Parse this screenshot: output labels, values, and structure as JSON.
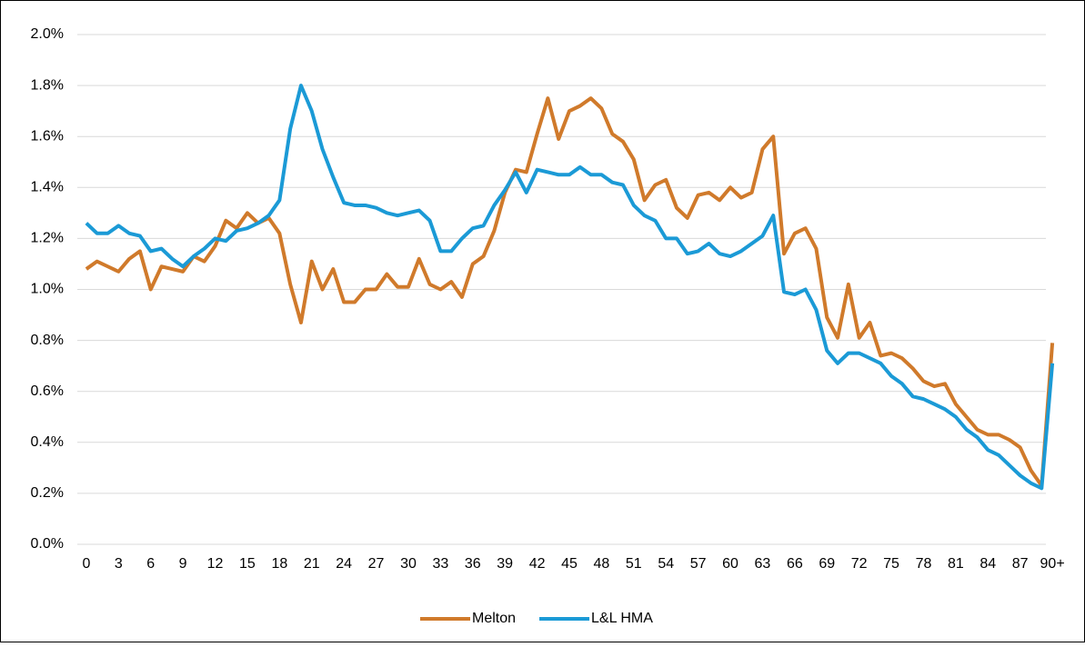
{
  "chart_data": {
    "type": "line",
    "categories": [
      "0",
      null,
      null,
      "3",
      null,
      null,
      "6",
      null,
      null,
      "9",
      null,
      null,
      "12",
      null,
      null,
      "15",
      null,
      null,
      "18",
      null,
      null,
      "21",
      null,
      null,
      "24",
      null,
      null,
      "27",
      null,
      null,
      "30",
      null,
      null,
      "33",
      null,
      null,
      "36",
      null,
      null,
      "39",
      null,
      null,
      "42",
      null,
      null,
      "45",
      null,
      null,
      "48",
      null,
      null,
      "51",
      null,
      null,
      "54",
      null,
      null,
      "57",
      null,
      null,
      "60",
      null,
      null,
      "63",
      null,
      null,
      "66",
      null,
      null,
      "69",
      null,
      null,
      "72",
      null,
      null,
      "75",
      null,
      null,
      "78",
      null,
      null,
      "81",
      null,
      null,
      "84",
      null,
      null,
      "87",
      null,
      null,
      "90+"
    ],
    "series": [
      {
        "name": "Melton",
        "color": "#d07a2b",
        "values": [
          1.08,
          1.11,
          1.09,
          1.07,
          1.12,
          1.15,
          1.0,
          1.09,
          1.08,
          1.07,
          1.13,
          1.11,
          1.17,
          1.27,
          1.24,
          1.3,
          1.26,
          1.28,
          1.22,
          1.02,
          0.87,
          1.11,
          1.0,
          1.08,
          0.95,
          0.95,
          1.0,
          1.0,
          1.06,
          1.01,
          1.01,
          1.12,
          1.02,
          1.0,
          1.03,
          0.97,
          1.1,
          1.13,
          1.23,
          1.38,
          1.47,
          1.46,
          1.61,
          1.75,
          1.59,
          1.7,
          1.72,
          1.75,
          1.71,
          1.61,
          1.58,
          1.51,
          1.35,
          1.41,
          1.43,
          1.32,
          1.28,
          1.37,
          1.38,
          1.35,
          1.4,
          1.36,
          1.38,
          1.55,
          1.6,
          1.14,
          1.22,
          1.24,
          1.16,
          0.89,
          0.81,
          1.02,
          0.81,
          0.87,
          0.74,
          0.75,
          0.73,
          0.69,
          0.64,
          0.62,
          0.63,
          0.55,
          0.5,
          0.45,
          0.43,
          0.43,
          0.41,
          0.38,
          0.29,
          0.23,
          0.79
        ]
      },
      {
        "name": "L&L HMA",
        "color": "#1b9ad6",
        "values": [
          1.26,
          1.22,
          1.22,
          1.25,
          1.22,
          1.21,
          1.15,
          1.16,
          1.12,
          1.09,
          1.13,
          1.16,
          1.2,
          1.19,
          1.23,
          1.24,
          1.26,
          1.29,
          1.35,
          1.63,
          1.8,
          1.7,
          1.55,
          1.44,
          1.34,
          1.33,
          1.33,
          1.32,
          1.3,
          1.29,
          1.3,
          1.31,
          1.27,
          1.15,
          1.15,
          1.2,
          1.24,
          1.25,
          1.33,
          1.39,
          1.46,
          1.38,
          1.47,
          1.46,
          1.45,
          1.45,
          1.48,
          1.45,
          1.45,
          1.42,
          1.41,
          1.33,
          1.29,
          1.27,
          1.2,
          1.2,
          1.14,
          1.15,
          1.18,
          1.14,
          1.13,
          1.15,
          1.18,
          1.21,
          1.29,
          0.99,
          0.98,
          1.0,
          0.92,
          0.76,
          0.71,
          0.75,
          0.75,
          0.73,
          0.71,
          0.66,
          0.63,
          0.58,
          0.57,
          0.55,
          0.53,
          0.5,
          0.45,
          0.42,
          0.37,
          0.35,
          0.31,
          0.27,
          0.24,
          0.22,
          0.71
        ]
      }
    ],
    "ylim": [
      0,
      2
    ],
    "yticks": [
      {
        "value": 0,
        "label": "0.0%"
      },
      {
        "value": 0.2,
        "label": "0.2%"
      },
      {
        "value": 0.4,
        "label": "0.4%"
      },
      {
        "value": 0.6,
        "label": "0.6%"
      },
      {
        "value": 0.8,
        "label": "0.8%"
      },
      {
        "value": 1.0,
        "label": "1.0%"
      },
      {
        "value": 1.2,
        "label": "1.2%"
      },
      {
        "value": 1.4,
        "label": "1.4%"
      },
      {
        "value": 1.6,
        "label": "1.6%"
      },
      {
        "value": 1.8,
        "label": "1.8%"
      },
      {
        "value": 2.0,
        "label": "2.0%"
      }
    ],
    "grid": true,
    "legend": "bottom"
  }
}
